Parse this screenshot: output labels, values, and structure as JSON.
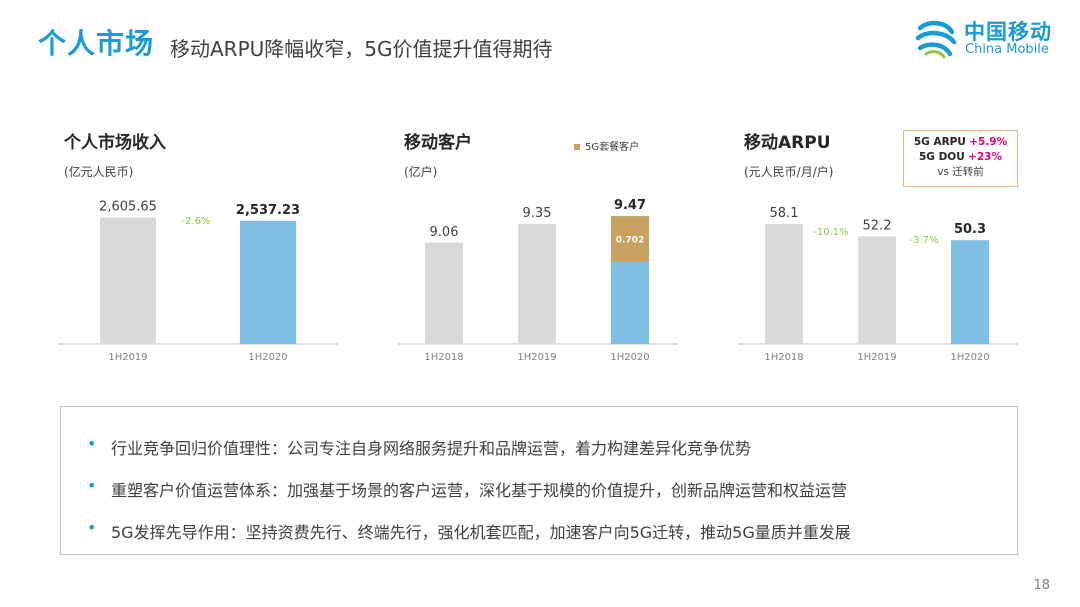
{
  "header": {
    "title": "个人市场",
    "subtitle": "移动ARPU降幅收窄，5G价值提升值得期待"
  },
  "logo": {
    "cn": "中国移动",
    "en": "China Mobile"
  },
  "colors": {
    "accent": "#1a9ad6",
    "bar_gray": "#d9d9d9",
    "bar_blue": "#7fbfe6",
    "bar_gold": "#c9a15e",
    "change_green": "#8dc63f",
    "highlight_pink": "#e4007f"
  },
  "charts": {
    "revenue": {
      "title": "个人市场收入",
      "unit": "(亿元人民币)",
      "changes": [
        "-2.6%"
      ]
    },
    "customers": {
      "title": "移动客户",
      "unit": "(亿户)",
      "legend": "5G套餐客户",
      "segment_label": "0.702"
    },
    "arpu": {
      "title": "移动ARPU",
      "unit": "(元人民币/月/户)",
      "changes": [
        "-10.1%",
        "-3.7%"
      ]
    }
  },
  "arpu_note": {
    "line1_label": "5G ARPU",
    "line1_value": "+5.9%",
    "line2_label": "5G DOU",
    "line2_value": "+23%",
    "line3": "vs 迁转前"
  },
  "chart_data": [
    {
      "type": "bar",
      "title": "个人市场收入",
      "ylabel": "(亿元人民币)",
      "categories": [
        "1H2019",
        "1H2020"
      ],
      "values": [
        2605.65,
        2537.23
      ],
      "labels": [
        "2,605.65",
        "2,537.23"
      ],
      "ylim": [
        0,
        2800
      ]
    },
    {
      "type": "bar",
      "title": "移动客户",
      "ylabel": "(亿户)",
      "categories": [
        "1H2018",
        "1H2019",
        "1H2020"
      ],
      "values": [
        9.06,
        9.35,
        9.47
      ],
      "labels": [
        "9.06",
        "9.35",
        "9.47"
      ],
      "series": [
        {
          "name": "5G套餐客户",
          "values": [
            0,
            0,
            0.702
          ]
        }
      ],
      "ylim": [
        7.5,
        9.75
      ]
    },
    {
      "type": "bar",
      "title": "移动ARPU",
      "ylabel": "(元人民币/月/户)",
      "categories": [
        "1H2018",
        "1H2019",
        "1H2020"
      ],
      "values": [
        58.1,
        52.2,
        50.3
      ],
      "labels": [
        "58.1",
        "52.2",
        "50.3"
      ],
      "ylim": [
        0,
        63
      ]
    }
  ],
  "bullets": [
    "行业竞争回归价值理性：公司专注自身网络服务提升和品牌运营，着力构建差异化竞争优势",
    "重塑客户价值运营体系：加强基于场景的客户运营，深化基于规模的价值提升，创新品牌运营和权益运营",
    "5G发挥先导作用：坚持资费先行、终端先行，强化机套匹配，加速客户向5G迁转，推动5G量质并重发展"
  ],
  "page_number": "18"
}
